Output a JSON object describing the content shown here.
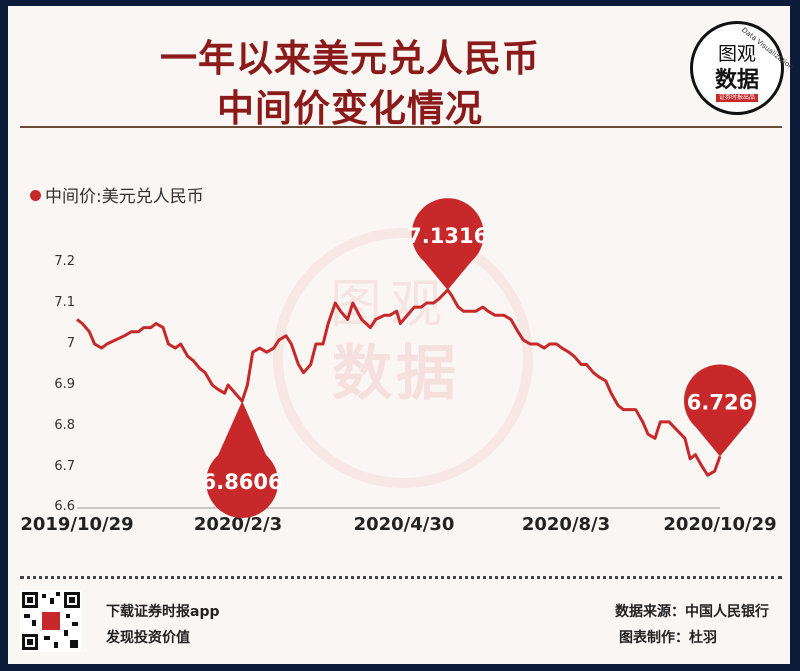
{
  "header": {
    "title_line1": "一年以来美元兑人民币",
    "title_line2": "中间价变化情况"
  },
  "logo": {
    "line1": "图观",
    "line2": "数据",
    "tagline": "证券时报出品",
    "arc_text": "Data Visualization"
  },
  "watermark": {
    "line1": "图观",
    "line2": "数据"
  },
  "footer": {
    "download": "下载证券时报app",
    "discover": "发现投资价值",
    "source": "数据来源：中国人民银行",
    "author": "图表制作：杜羽"
  },
  "colors": {
    "accent": "#c7282a",
    "title": "#8b1a1a",
    "frame": "#0d1b3a"
  },
  "chart_data": {
    "type": "line",
    "legend": "中间价:美元兑人民币",
    "legend_position": "top-left",
    "grid": false,
    "ylim": [
      6.6,
      7.2
    ],
    "yticks": [
      "7.2",
      "7.1",
      "7",
      "6.9",
      "6.8",
      "6.7",
      "6.6"
    ],
    "xticks": [
      "2019/10/29",
      "2020/2/3",
      "2020/4/30",
      "2020/8/3",
      "2020/10/29"
    ],
    "series": [
      {
        "name": "中间价:美元兑人民币",
        "points": [
          [
            "2019-10-29",
            7.06
          ],
          [
            "2019-11-01",
            7.05
          ],
          [
            "2019-11-05",
            7.03
          ],
          [
            "2019-11-08",
            7.0
          ],
          [
            "2019-11-12",
            6.99
          ],
          [
            "2019-11-15",
            7.0
          ],
          [
            "2019-11-20",
            7.01
          ],
          [
            "2019-11-25",
            7.02
          ],
          [
            "2019-11-29",
            7.03
          ],
          [
            "2019-12-03",
            7.03
          ],
          [
            "2019-12-06",
            7.04
          ],
          [
            "2019-12-10",
            7.04
          ],
          [
            "2019-12-13",
            7.05
          ],
          [
            "2019-12-17",
            7.04
          ],
          [
            "2019-12-20",
            7.0
          ],
          [
            "2019-12-24",
            6.99
          ],
          [
            "2019-12-27",
            7.0
          ],
          [
            "2019-12-31",
            6.97
          ],
          [
            "2020-01-03",
            6.96
          ],
          [
            "2020-01-07",
            6.94
          ],
          [
            "2020-01-10",
            6.93
          ],
          [
            "2020-01-14",
            6.9
          ],
          [
            "2020-01-17",
            6.89
          ],
          [
            "2020-01-21",
            6.88
          ],
          [
            "2020-01-23",
            6.9
          ],
          [
            "2020-01-31",
            6.8606
          ],
          [
            "2020-02-03",
            6.9
          ],
          [
            "2020-02-06",
            6.98
          ],
          [
            "2020-02-10",
            6.99
          ],
          [
            "2020-02-14",
            6.98
          ],
          [
            "2020-02-18",
            6.99
          ],
          [
            "2020-02-21",
            7.01
          ],
          [
            "2020-02-25",
            7.02
          ],
          [
            "2020-02-28",
            7.0
          ],
          [
            "2020-03-03",
            6.95
          ],
          [
            "2020-03-06",
            6.93
          ],
          [
            "2020-03-10",
            6.95
          ],
          [
            "2020-03-13",
            7.0
          ],
          [
            "2020-03-17",
            7.0
          ],
          [
            "2020-03-20",
            7.05
          ],
          [
            "2020-03-24",
            7.1
          ],
          [
            "2020-03-27",
            7.08
          ],
          [
            "2020-03-31",
            7.06
          ],
          [
            "2020-04-03",
            7.1
          ],
          [
            "2020-04-08",
            7.06
          ],
          [
            "2020-04-13",
            7.04
          ],
          [
            "2020-04-16",
            7.06
          ],
          [
            "2020-04-21",
            7.07
          ],
          [
            "2020-04-24",
            7.07
          ],
          [
            "2020-04-28",
            7.08
          ],
          [
            "2020-04-30",
            7.05
          ],
          [
            "2020-05-06",
            7.08
          ],
          [
            "2020-05-08",
            7.09
          ],
          [
            "2020-05-12",
            7.09
          ],
          [
            "2020-05-15",
            7.1
          ],
          [
            "2020-05-19",
            7.1
          ],
          [
            "2020-05-22",
            7.11
          ],
          [
            "2020-05-27",
            7.1316
          ],
          [
            "2020-05-29",
            7.12
          ],
          [
            "2020-06-02",
            7.09
          ],
          [
            "2020-06-05",
            7.08
          ],
          [
            "2020-06-09",
            7.08
          ],
          [
            "2020-06-12",
            7.08
          ],
          [
            "2020-06-16",
            7.09
          ],
          [
            "2020-06-19",
            7.08
          ],
          [
            "2020-06-23",
            7.07
          ],
          [
            "2020-06-28",
            7.07
          ],
          [
            "2020-07-02",
            7.06
          ],
          [
            "2020-07-06",
            7.03
          ],
          [
            "2020-07-09",
            7.01
          ],
          [
            "2020-07-13",
            7.0
          ],
          [
            "2020-07-17",
            7.0
          ],
          [
            "2020-07-21",
            6.99
          ],
          [
            "2020-07-24",
            7.0
          ],
          [
            "2020-07-28",
            7.0
          ],
          [
            "2020-07-31",
            6.99
          ],
          [
            "2020-08-04",
            6.98
          ],
          [
            "2020-08-07",
            6.97
          ],
          [
            "2020-08-11",
            6.95
          ],
          [
            "2020-08-14",
            6.95
          ],
          [
            "2020-08-18",
            6.93
          ],
          [
            "2020-08-21",
            6.92
          ],
          [
            "2020-08-25",
            6.91
          ],
          [
            "2020-08-28",
            6.88
          ],
          [
            "2020-09-01",
            6.85
          ],
          [
            "2020-09-04",
            6.84
          ],
          [
            "2020-09-08",
            6.84
          ],
          [
            "2020-09-11",
            6.84
          ],
          [
            "2020-09-15",
            6.81
          ],
          [
            "2020-09-18",
            6.78
          ],
          [
            "2020-09-22",
            6.77
          ],
          [
            "2020-09-25",
            6.81
          ],
          [
            "2020-09-30",
            6.81
          ],
          [
            "2020-10-09",
            6.77
          ],
          [
            "2020-10-12",
            6.72
          ],
          [
            "2020-10-15",
            6.73
          ],
          [
            "2020-10-19",
            6.7
          ],
          [
            "2020-10-22",
            6.68
          ],
          [
            "2020-10-26",
            6.69
          ],
          [
            "2020-10-29",
            6.726
          ]
        ]
      }
    ],
    "annotations": [
      {
        "label": "6.8606",
        "x": "2020-01-31",
        "y": 6.8606,
        "pin": "below"
      },
      {
        "label": "7.1316",
        "x": "2020-05-27",
        "y": 7.1316,
        "pin": "above"
      },
      {
        "label": "6.726",
        "x": "2020-10-29",
        "y": 6.726,
        "pin": "above"
      }
    ]
  }
}
